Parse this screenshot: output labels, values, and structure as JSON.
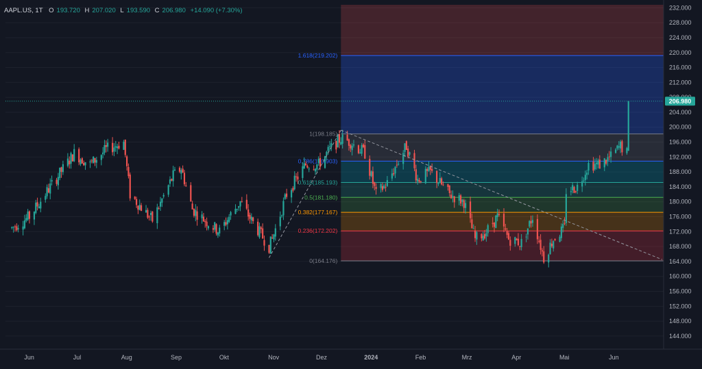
{
  "header": {
    "symbol": "AAPL.US, 1T",
    "open_label": "O",
    "open": "193.720",
    "high_label": "H",
    "high": "207.020",
    "low_label": "L",
    "low": "193.590",
    "close_label": "C",
    "close": "206.980",
    "change": "+14.090 (+7.30%)"
  },
  "colors": {
    "background": "#131722",
    "up": "#26a69a",
    "down": "#ef5350",
    "axis_text": "#b2b5be",
    "trendline": "#9598a1"
  },
  "chart_data": {
    "type": "candlestick",
    "title": "",
    "ylim": [
      140.5,
      232.8
    ],
    "y_ticks": [
      "232.000",
      "228.000",
      "224.000",
      "220.000",
      "216.000",
      "212.000",
      "208.000",
      "204.000",
      "200.000",
      "196.000",
      "192.000",
      "188.000",
      "184.000",
      "180.000",
      "176.000",
      "172.000",
      "168.000",
      "164.000",
      "160.000",
      "156.000",
      "152.000",
      "148.000",
      "144.000"
    ],
    "x_ticks": [
      "Jun",
      "Jul",
      "Aug",
      "Sep",
      "Okt",
      "Nov",
      "Dez",
      "2024",
      "Feb",
      "Mrz",
      "Apr",
      "Mai",
      "Jun"
    ],
    "last_price": "206.980",
    "fibonacci_levels": [
      {
        "ratio": "1.618",
        "price": 219.202,
        "label": "1.618(219.202)",
        "color": "#2962ff"
      },
      {
        "ratio": "1",
        "price": 198.185,
        "label": "1(198.185)",
        "color": "#787b86"
      },
      {
        "ratio": "0.786",
        "price": 190.903,
        "label": "0.786(190.903)",
        "color": "#2962ff"
      },
      {
        "ratio": "0.618",
        "price": 185.193,
        "label": "0.618(185.193)",
        "color": "#26a69a"
      },
      {
        "ratio": "0.5",
        "price": 181.18,
        "label": "0.5(181.180)",
        "color": "#4caf50"
      },
      {
        "ratio": "0.382",
        "price": 177.167,
        "label": "0.382(177.167)",
        "color": "#ff9800"
      },
      {
        "ratio": "0.236",
        "price": 172.202,
        "label": "0.236(172.202)",
        "color": "#f23645"
      },
      {
        "ratio": "0",
        "price": 164.176,
        "label": "0(164.176)",
        "color": "#787b86"
      }
    ],
    "price_path": [
      [
        "2023-05-22",
        173
      ],
      [
        "2023-06-02",
        176
      ],
      [
        "2023-06-15",
        184
      ],
      [
        "2023-06-30",
        193
      ],
      [
        "2023-07-10",
        190
      ],
      [
        "2023-07-20",
        194
      ],
      [
        "2023-07-31",
        196
      ],
      [
        "2023-08-04",
        182
      ],
      [
        "2023-08-18",
        175
      ],
      [
        "2023-08-31",
        187
      ],
      [
        "2023-09-05",
        189
      ],
      [
        "2023-09-12",
        178
      ],
      [
        "2023-09-20",
        175
      ],
      [
        "2023-09-29",
        172
      ],
      [
        "2023-10-05",
        176
      ],
      [
        "2023-10-12",
        180
      ],
      [
        "2023-10-19",
        175
      ],
      [
        "2023-10-30",
        168
      ],
      [
        "2023-11-01",
        170
      ],
      [
        "2023-11-10",
        182
      ],
      [
        "2023-11-22",
        190
      ],
      [
        "2023-11-30",
        190
      ],
      [
        "2023-12-07",
        194
      ],
      [
        "2023-12-14",
        197
      ],
      [
        "2023-12-20",
        196
      ],
      [
        "2023-12-29",
        193
      ],
      [
        "2024-01-05",
        182
      ],
      [
        "2024-01-12",
        185
      ],
      [
        "2024-01-19",
        191
      ],
      [
        "2024-01-24",
        195
      ],
      [
        "2024-01-31",
        186
      ],
      [
        "2024-02-08",
        188
      ],
      [
        "2024-02-20",
        182
      ],
      [
        "2024-02-29",
        180
      ],
      [
        "2024-03-07",
        170
      ],
      [
        "2024-03-14",
        172
      ],
      [
        "2024-03-21",
        176
      ],
      [
        "2024-03-28",
        170
      ],
      [
        "2024-04-05",
        169
      ],
      [
        "2024-04-12",
        176
      ],
      [
        "2024-04-19",
        165
      ],
      [
        "2024-04-25",
        170
      ],
      [
        "2024-05-02",
        173
      ],
      [
        "2024-05-03",
        183
      ],
      [
        "2024-05-10",
        184
      ],
      [
        "2024-05-17",
        190
      ],
      [
        "2024-05-24",
        190
      ],
      [
        "2024-05-31",
        192
      ],
      [
        "2024-06-06",
        195
      ],
      [
        "2024-06-10",
        193
      ],
      [
        "2024-06-11",
        207
      ]
    ]
  }
}
